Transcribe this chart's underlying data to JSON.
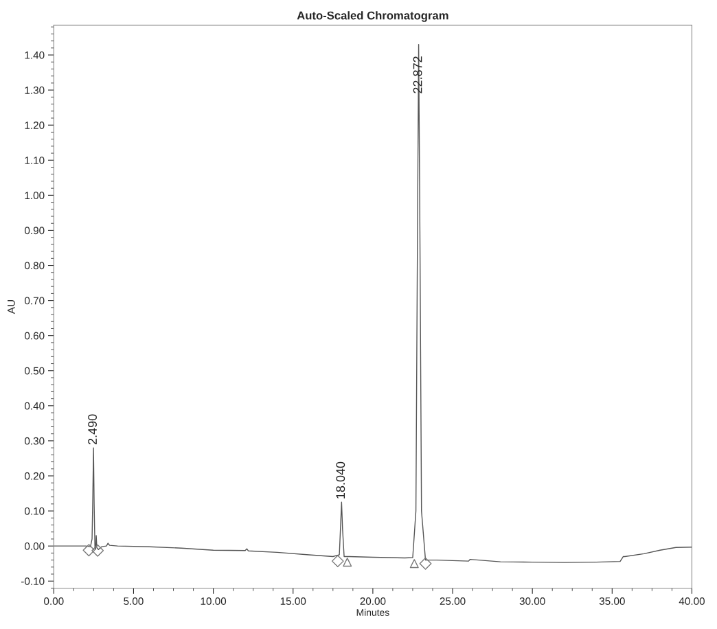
{
  "chart_data": {
    "type": "line",
    "title": "Auto-Scaled Chromatogram",
    "xlabel": "Minutes",
    "ylabel": "AU",
    "xlim": [
      0,
      40
    ],
    "ylim": [
      -0.12,
      1.485
    ],
    "xticks": [
      {
        "value": 0,
        "label": "0.00"
      },
      {
        "value": 5,
        "label": "5.00"
      },
      {
        "value": 10,
        "label": "10.00"
      },
      {
        "value": 15,
        "label": "15.00"
      },
      {
        "value": 20,
        "label": "20.00"
      },
      {
        "value": 25,
        "label": "25.00"
      },
      {
        "value": 30,
        "label": "30.00"
      },
      {
        "value": 35,
        "label": "35.00"
      },
      {
        "value": 40,
        "label": "40.00"
      }
    ],
    "yticks": [
      {
        "value": -0.1,
        "label": "-0.10"
      },
      {
        "value": 0,
        "label": "0.00"
      },
      {
        "value": 0.1,
        "label": "0.10"
      },
      {
        "value": 0.2,
        "label": "0.20"
      },
      {
        "value": 0.3,
        "label": "0.30"
      },
      {
        "value": 0.4,
        "label": "0.40"
      },
      {
        "value": 0.5,
        "label": "0.50"
      },
      {
        "value": 0.6,
        "label": "0.60"
      },
      {
        "value": 0.7,
        "label": "0.70"
      },
      {
        "value": 0.8,
        "label": "0.80"
      },
      {
        "value": 0.9,
        "label": "0.90"
      },
      {
        "value": 1.0,
        "label": "1.00"
      },
      {
        "value": 1.1,
        "label": "1.10"
      },
      {
        "value": 1.2,
        "label": "1.20"
      },
      {
        "value": 1.3,
        "label": "1.30"
      },
      {
        "value": 1.4,
        "label": "1.40"
      }
    ],
    "grid": false,
    "legend": false,
    "series": [
      {
        "color": "#555555",
        "marker": "none",
        "line_style": "solid",
        "x": [
          0,
          1,
          2,
          2.3,
          2.4,
          2.45,
          2.49,
          2.53,
          2.58,
          2.62,
          2.66,
          2.7,
          2.8,
          3.0,
          3.3,
          3.4,
          3.5,
          4,
          6,
          8,
          10,
          12,
          12.1,
          12.2,
          14,
          16,
          17.5,
          17.9,
          17.98,
          18.04,
          18.1,
          18.2,
          18.5,
          20,
          22,
          22.5,
          22.7,
          22.8,
          22.872,
          22.95,
          23.05,
          23.3,
          24,
          26,
          26.1,
          28,
          30,
          32,
          34,
          35.5,
          35.7,
          35.8,
          37,
          38,
          39,
          40
        ],
        "values": [
          0,
          0,
          0,
          -0.002,
          0.02,
          0.15,
          0.28,
          0.12,
          -0.005,
          -0.01,
          0.03,
          -0.005,
          -0.01,
          -0.002,
          0,
          0.008,
          0.002,
          0,
          -0.002,
          -0.006,
          -0.012,
          -0.013,
          -0.008,
          -0.014,
          -0.018,
          -0.025,
          -0.03,
          -0.025,
          0.06,
          0.125,
          0.05,
          -0.03,
          -0.03,
          -0.032,
          -0.034,
          -0.033,
          0.1,
          0.9,
          1.43,
          0.9,
          0.1,
          -0.04,
          -0.04,
          -0.043,
          -0.038,
          -0.045,
          -0.046,
          -0.047,
          -0.046,
          -0.044,
          -0.03,
          -0.03,
          -0.022,
          -0.012,
          -0.004,
          -0.003
        ]
      },
      {
        "type": "scatter",
        "color": "#777777",
        "marker": "diamond",
        "x": [
          2.2,
          2.75,
          17.8,
          23.3
        ],
        "values": [
          -0.012,
          -0.013,
          -0.043,
          -0.05
        ]
      },
      {
        "type": "scatter",
        "color": "#777777",
        "marker": "triangle",
        "x": [
          18.4,
          22.6
        ],
        "values": [
          -0.046,
          -0.05
        ]
      }
    ],
    "annotations": [
      {
        "text": "2.490",
        "x": 2.49,
        "y": 0.28
      },
      {
        "text": "18.040",
        "x": 18.04,
        "y": 0.125
      },
      {
        "text": "22.872",
        "x": 22.872,
        "y": 1.43
      }
    ]
  }
}
